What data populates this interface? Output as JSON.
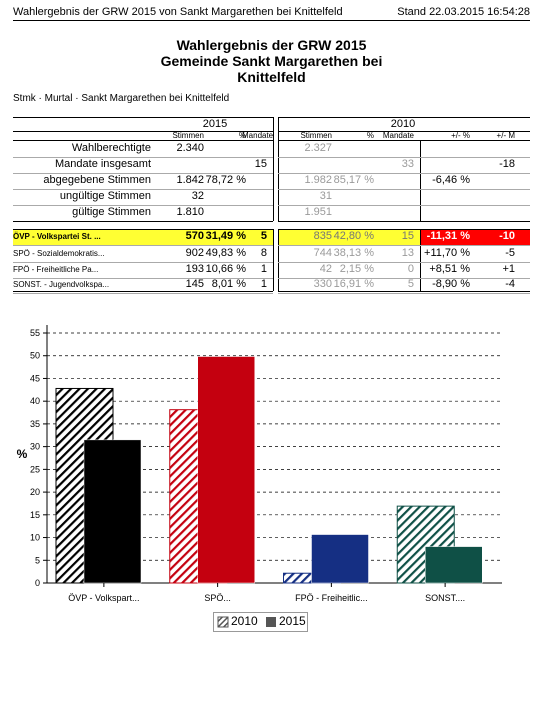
{
  "header": {
    "left": "Wahlergebnis der GRW 2015 von Sankt Margarethen bei Knittelfeld",
    "right": "Stand 22.03.2015 16:54:28"
  },
  "title": {
    "line1": "Wahlergebnis der GRW 2015",
    "line2": "Gemeinde Sankt Margarethen bei",
    "line3": "Knittelfeld"
  },
  "breadcrumb": "Stmk · Murtal · Sankt Margarethen bei Knittelfeld",
  "table": {
    "year_2015": "2015",
    "year_2010": "2010",
    "col_stimmen": "Stimmen",
    "col_pct": "%",
    "col_mandate": "Mandate",
    "col_diff_pct": "+/- %",
    "col_diff_m": "+/- M",
    "summary": [
      {
        "label": "Wahlberechtigte",
        "s15": "2.340",
        "p15": "",
        "m15": "",
        "s10": "2.327",
        "p10": "",
        "m10": "",
        "dp": "",
        "dm": ""
      },
      {
        "label": "Mandate insgesamt",
        "s15": "",
        "p15": "",
        "m15": "15",
        "s10": "",
        "p10": "",
        "m10": "33",
        "dp": "",
        "dm": "-18"
      },
      {
        "label": "abgegebene Stimmen",
        "s15": "1.842",
        "p15": "78,72 %",
        "m15": "",
        "s10": "1.982",
        "p10": "85,17 %",
        "m10": "",
        "dp": "-6,46 %",
        "dm": ""
      },
      {
        "label": "ungültige Stimmen",
        "s15": "32",
        "p15": "",
        "m15": "",
        "s10": "31",
        "p10": "",
        "m10": "",
        "dp": "",
        "dm": ""
      },
      {
        "label": "gültige Stimmen",
        "s15": "1.810",
        "p15": "",
        "m15": "",
        "s10": "1.951",
        "p10": "",
        "m10": "",
        "dp": "",
        "dm": ""
      }
    ],
    "parties": [
      {
        "label": "ÖVP - Volkspartei St. ...",
        "s15": "570",
        "p15": "31,49 %",
        "m15": "5",
        "s10": "835",
        "p10": "42,80 %",
        "m10": "15",
        "dp": "-11,31 %",
        "dm": "-10"
      },
      {
        "label": "SPÖ - Sozialdemokratis...",
        "s15": "902",
        "p15": "49,83 %",
        "m15": "8",
        "s10": "744",
        "p10": "38,13 %",
        "m10": "13",
        "dp": "+11,70 %",
        "dm": "-5"
      },
      {
        "label": "FPÖ - Freiheitliche Pa...",
        "s15": "193",
        "p15": "10,66 %",
        "m15": "1",
        "s10": "42",
        "p10": "2,15 %",
        "m10": "0",
        "dp": "+8,51 %",
        "dm": "+1"
      },
      {
        "label": "SONST. - Jugendvolkspa...",
        "s15": "145",
        "p15": "8,01 %",
        "m15": "1",
        "s10": "330",
        "p10": "16,91 %",
        "m10": "5",
        "dp": "-8,90 %",
        "dm": "-4"
      }
    ]
  },
  "colors": {
    "highlight_yellow": "#ffff33",
    "highlight_red": "#ff0000",
    "oevp": "#000000",
    "spoe": "#c4000f",
    "fpoe": "#152f83",
    "sonst": "#0f5046"
  },
  "chart_data": {
    "type": "bar",
    "ylabel": "%",
    "ylim": [
      0,
      55
    ],
    "yticks": [
      0,
      5,
      10,
      15,
      20,
      25,
      30,
      35,
      40,
      45,
      50,
      55
    ],
    "categories": [
      "ÖVP - Volkspart...",
      "SPÖ...",
      "FPÖ - Freiheitlic...",
      "SONST...."
    ],
    "series": [
      {
        "name": "2010",
        "values": [
          42.8,
          38.13,
          2.15,
          16.91
        ],
        "style": "hatched"
      },
      {
        "name": "2015",
        "values": [
          31.49,
          49.83,
          10.66,
          8.01
        ],
        "style": "solid"
      }
    ],
    "legend": "bottom-center",
    "grid": "dashed-horizontal"
  }
}
